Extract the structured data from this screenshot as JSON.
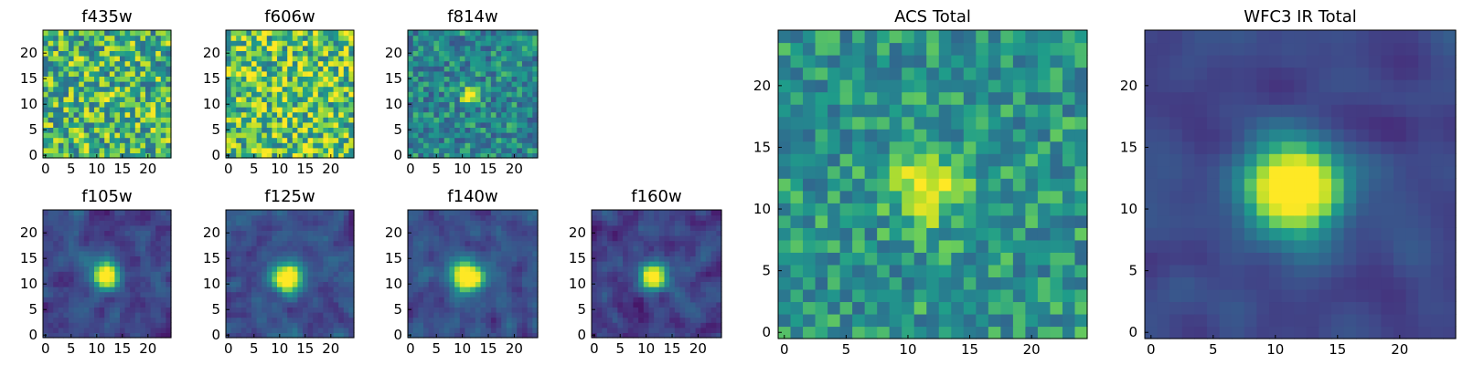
{
  "chart_data": [
    {
      "type": "heatmap",
      "title": "f435w",
      "shape": [
        25,
        25
      ],
      "colormap": "viridis",
      "xlim": [
        0,
        24
      ],
      "ylim": [
        0,
        24
      ],
      "xticks": [
        "0",
        "5",
        "10",
        "15",
        "20"
      ],
      "yticks": [
        "0",
        "5",
        "10",
        "15",
        "20"
      ],
      "source": {
        "seed": 11,
        "noise": 0.62,
        "base": 0.68,
        "amp": 0.08,
        "sigma": 1.6,
        "smooth": 0,
        "cx": 11.5,
        "cy": 11.5
      }
    },
    {
      "type": "heatmap",
      "title": "f606w",
      "shape": [
        25,
        25
      ],
      "colormap": "viridis",
      "xlim": [
        0,
        24
      ],
      "ylim": [
        0,
        24
      ],
      "xticks": [
        "0",
        "5",
        "10",
        "15",
        "20"
      ],
      "yticks": [
        "0",
        "5",
        "10",
        "15",
        "20"
      ],
      "source": {
        "seed": 23,
        "noise": 0.62,
        "base": 0.74,
        "amp": 0.02,
        "sigma": 1.6,
        "smooth": 0,
        "cx": 11.5,
        "cy": 11.5
      }
    },
    {
      "type": "heatmap",
      "title": "f814w",
      "shape": [
        25,
        25
      ],
      "colormap": "viridis",
      "xlim": [
        0,
        24
      ],
      "ylim": [
        0,
        24
      ],
      "xticks": [
        "0",
        "5",
        "10",
        "15",
        "20"
      ],
      "yticks": [
        "0",
        "5",
        "10",
        "15",
        "20"
      ],
      "source": {
        "seed": 37,
        "noise": 0.42,
        "base": 0.5,
        "amp": 0.6,
        "sigma": 1.1,
        "smooth": 0,
        "cx": 11.5,
        "cy": 11.5
      }
    },
    {
      "type": "heatmap",
      "title": "f105w",
      "shape": [
        25,
        25
      ],
      "colormap": "viridis",
      "xlim": [
        0,
        24
      ],
      "ylim": [
        0,
        24
      ],
      "xticks": [
        "0",
        "5",
        "10",
        "15",
        "20"
      ],
      "yticks": [
        "0",
        "5",
        "10",
        "15",
        "20"
      ],
      "source": {
        "seed": 41,
        "noise": 0.32,
        "base": 0.24,
        "amp": 0.95,
        "sigma": 1.9,
        "smooth": 1,
        "cx": 11.8,
        "cy": 11.8
      }
    },
    {
      "type": "heatmap",
      "title": "f125w",
      "shape": [
        25,
        25
      ],
      "colormap": "viridis",
      "xlim": [
        0,
        24
      ],
      "ylim": [
        0,
        24
      ],
      "xticks": [
        "0",
        "5",
        "10",
        "15",
        "20"
      ],
      "yticks": [
        "0",
        "5",
        "10",
        "15",
        "20"
      ],
      "source": {
        "seed": 53,
        "noise": 0.32,
        "base": 0.28,
        "amp": 0.92,
        "sigma": 2.0,
        "smooth": 1,
        "cx": 11.6,
        "cy": 11.2
      }
    },
    {
      "type": "heatmap",
      "title": "f140w",
      "shape": [
        25,
        25
      ],
      "colormap": "viridis",
      "xlim": [
        0,
        24
      ],
      "ylim": [
        0,
        24
      ],
      "xticks": [
        "0",
        "5",
        "10",
        "15",
        "20"
      ],
      "yticks": [
        "0",
        "5",
        "10",
        "15",
        "20"
      ],
      "source": {
        "seed": 67,
        "noise": 0.32,
        "base": 0.28,
        "amp": 0.92,
        "sigma": 2.1,
        "smooth": 1,
        "cx": 11.0,
        "cy": 11.6
      }
    },
    {
      "type": "heatmap",
      "title": "f160w",
      "shape": [
        25,
        25
      ],
      "colormap": "viridis",
      "xlim": [
        0,
        24
      ],
      "ylim": [
        0,
        24
      ],
      "xticks": [
        "0",
        "5",
        "10",
        "15",
        "20"
      ],
      "yticks": [
        "0",
        "5",
        "10",
        "15",
        "20"
      ],
      "source": {
        "seed": 79,
        "noise": 0.34,
        "base": 0.22,
        "amp": 0.95,
        "sigma": 1.9,
        "smooth": 1,
        "cx": 11.6,
        "cy": 11.6
      }
    },
    {
      "type": "heatmap",
      "title": "ACS Total",
      "shape": [
        25,
        25
      ],
      "colormap": "viridis",
      "xlim": [
        0,
        24
      ],
      "ylim": [
        0,
        24
      ],
      "xticks": [
        "0",
        "5",
        "10",
        "15",
        "20"
      ],
      "yticks": [
        "0",
        "5",
        "10",
        "15",
        "20"
      ],
      "source": {
        "seed": 89,
        "noise": 0.36,
        "base": 0.56,
        "amp": 0.45,
        "sigma": 2.0,
        "smooth": 0,
        "cx": 11.6,
        "cy": 11.8
      }
    },
    {
      "type": "heatmap",
      "title": "WFC3 IR Total",
      "shape": [
        25,
        25
      ],
      "colormap": "viridis",
      "xlim": [
        0,
        24
      ],
      "ylim": [
        0,
        24
      ],
      "xticks": [
        "0",
        "5",
        "10",
        "15",
        "20"
      ],
      "yticks": [
        "0",
        "5",
        "10",
        "15",
        "20"
      ],
      "source": {
        "seed": 97,
        "noise": 0.18,
        "base": 0.24,
        "amp": 0.95,
        "sigma": 2.8,
        "smooth": 2,
        "cx": 11.6,
        "cy": 11.8
      }
    }
  ]
}
